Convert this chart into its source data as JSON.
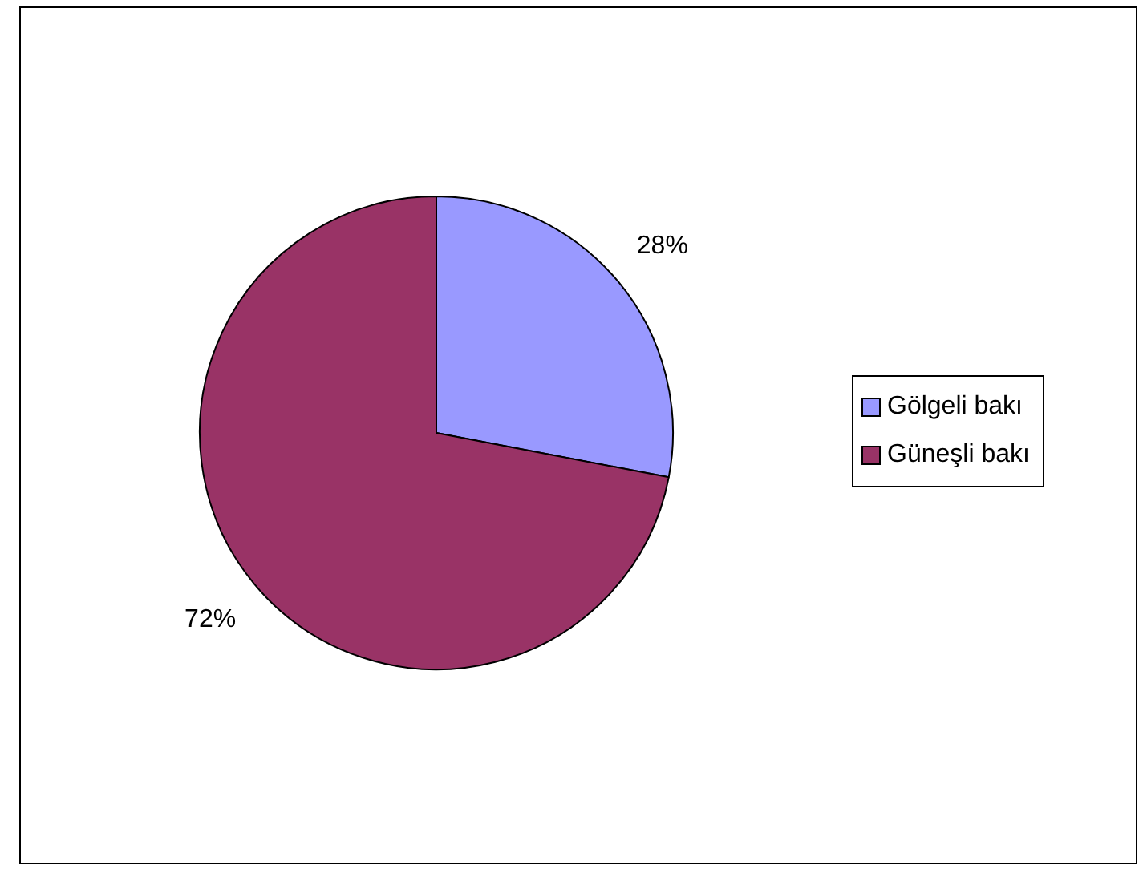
{
  "chart_data": {
    "type": "pie",
    "categories": [
      "Gölgeli bakı",
      "Güneşli bakı"
    ],
    "values": [
      28,
      72
    ],
    "colors": [
      "#9999ff",
      "#993366"
    ],
    "value_labels": [
      "28%",
      "72%"
    ],
    "legend": "right"
  }
}
